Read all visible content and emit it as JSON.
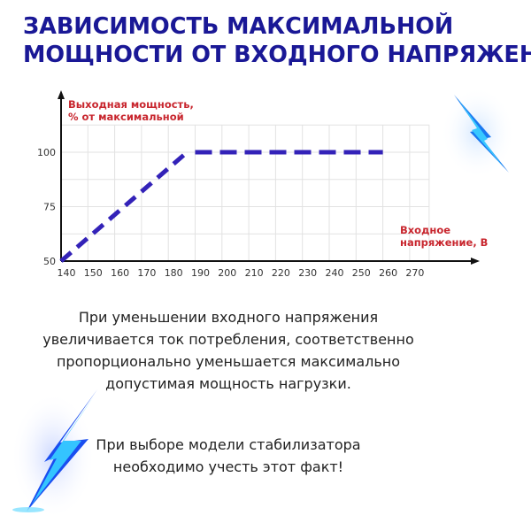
{
  "title": {
    "line1": "ЗАВИСИМОСТЬ МАКСИМАЛЬНОЙ",
    "line2": "МОЩНОСТИ ОТ ВХОДНОГО НАПРЯЖЕНИЯ"
  },
  "chart_data": {
    "type": "line",
    "ylabel": [
      "Выходная мощность,",
      "% от максимальной"
    ],
    "xlabel": [
      "Входное",
      "напряжение, В"
    ],
    "x_ticks": [
      140,
      150,
      160,
      170,
      180,
      190,
      200,
      210,
      220,
      230,
      240,
      250,
      260,
      270
    ],
    "y_ticks": [
      50,
      75,
      100
    ],
    "xlim": [
      140,
      275
    ],
    "ylim": [
      50,
      112.5
    ],
    "grid": true,
    "series": [
      {
        "x": [
          140,
          187,
          190,
          260
        ],
        "y": [
          50,
          100,
          100,
          100
        ],
        "style": "dashed"
      }
    ],
    "colors": {
      "line": "#3322b8",
      "labels": "#c8262e",
      "axis": "#111111",
      "grid": "#e2e2e2"
    }
  },
  "text": {
    "para1": [
      "При уменьшении входного напряжения",
      "увеличивается ток потребления, соответственно",
      "пропорционально уменьшается максимально",
      "допустимая мощность нагрузки."
    ],
    "para2": [
      "При выборе модели стабилизатора",
      "необходимо учесть этот факт!"
    ]
  },
  "decor": {
    "icons": [
      "lightning-bolt-icon",
      "lightning-bolt-icon"
    ]
  }
}
